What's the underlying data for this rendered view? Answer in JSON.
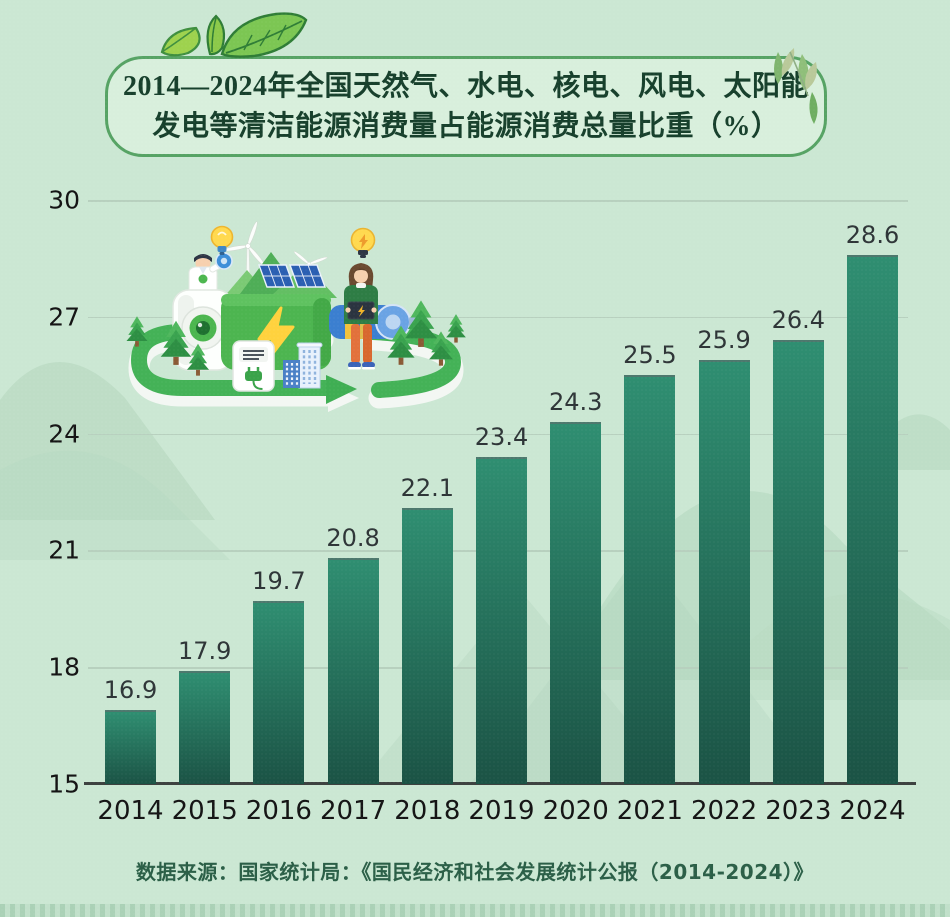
{
  "title": {
    "line1": "2014—2024年全国天然气、水电、核电、风电、太阳能",
    "line2": "发电等清洁能源消费量占能源消费总量比重（%）"
  },
  "source": {
    "text": "数据来源：国家统计局：《国民经济和社会发展统计公报（2014-2024）》"
  },
  "chart_data": {
    "type": "bar",
    "title": "2014—2024年全国天然气、水电、核电、风电、太阳能发电等清洁能源消费量占能源消费总量比重（%）",
    "categories": [
      "2014",
      "2015",
      "2016",
      "2017",
      "2018",
      "2019",
      "2020",
      "2021",
      "2022",
      "2023",
      "2024"
    ],
    "values": [
      16.9,
      17.9,
      19.7,
      20.8,
      22.1,
      23.4,
      24.3,
      25.5,
      25.9,
      26.4,
      28.6
    ],
    "xlabel": "",
    "ylabel": "",
    "ylim": [
      15,
      30
    ],
    "yticks": [
      15,
      18,
      21,
      24,
      27,
      30
    ],
    "grid": true,
    "legend": false,
    "value_labels": true
  },
  "colors": {
    "background": "#cbe7d3",
    "bar_top": "#2f8e71",
    "bar_bottom": "#1b5345",
    "title_text": "#17402c",
    "title_border": "#56a364",
    "title_fill": "#d8efdc",
    "grid_line": "#b7d0be",
    "axis_line": "#3d4240",
    "tick_text": "#141414",
    "value_text": "#2e3537",
    "source_text": "#2b5f47"
  }
}
